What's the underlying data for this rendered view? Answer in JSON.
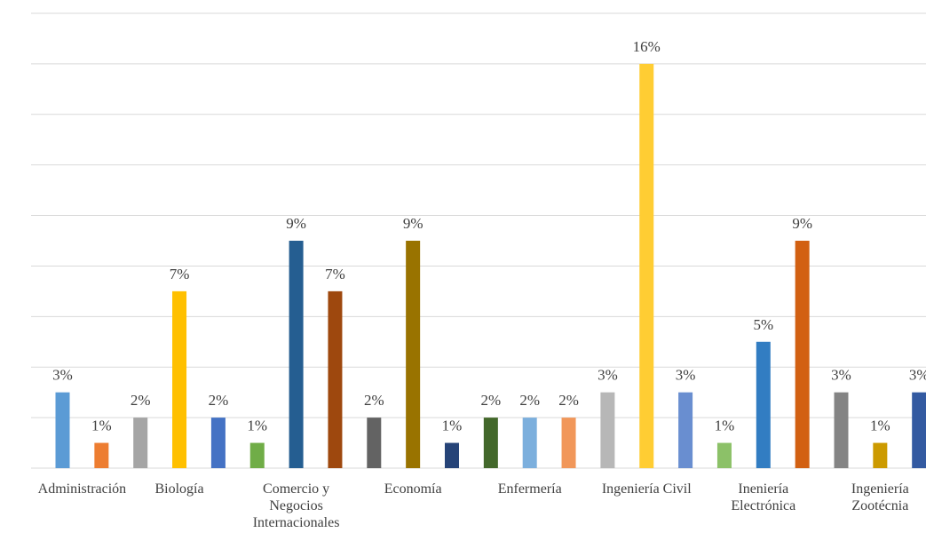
{
  "chart_data": {
    "type": "bar",
    "title": "",
    "xlabel": "",
    "ylabel": "",
    "ylim": [
      0,
      18
    ],
    "grid": true,
    "legend": "none",
    "groups": [
      {
        "label": "Administración",
        "lines": [
          "Administración"
        ],
        "bars": [
          {
            "value": 3,
            "label": "3%",
            "color": "#5B9BD5"
          },
          {
            "value": 1,
            "label": "1%",
            "color": "#ED7D31"
          }
        ]
      },
      {
        "label": "Biología",
        "lines": [
          "Biología"
        ],
        "bars": [
          {
            "value": 2,
            "label": "2%",
            "color": "#A5A5A5"
          },
          {
            "value": 7,
            "label": "7%",
            "color": "#FFC000"
          },
          {
            "value": 2,
            "label": "2%",
            "color": "#4472C4"
          }
        ]
      },
      {
        "label": "Comercio y Negocios Internacionales",
        "lines": [
          "Comercio y",
          "Negocios",
          "Internacionales"
        ],
        "bars": [
          {
            "value": 1,
            "label": "1%",
            "color": "#70AD47"
          },
          {
            "value": 9,
            "label": "9%",
            "color": "#255E91"
          },
          {
            "value": 7,
            "label": "7%",
            "color": "#9E480E"
          }
        ]
      },
      {
        "label": "Economía",
        "lines": [
          "Economía"
        ],
        "bars": [
          {
            "value": 2,
            "label": "2%",
            "color": "#636363"
          },
          {
            "value": 9,
            "label": "9%",
            "color": "#997300"
          },
          {
            "value": 1,
            "label": "1%",
            "color": "#264478"
          }
        ]
      },
      {
        "label": "Enfermería",
        "lines": [
          "Enfermería"
        ],
        "bars": [
          {
            "value": 2,
            "label": "2%",
            "color": "#43682B"
          },
          {
            "value": 2,
            "label": "2%",
            "color": "#7CAFDD"
          },
          {
            "value": 2,
            "label": "2%",
            "color": "#F1975A"
          }
        ]
      },
      {
        "label": "Ingeniería Civil",
        "lines": [
          "Ingeniería Civil"
        ],
        "bars": [
          {
            "value": 3,
            "label": "3%",
            "color": "#B7B7B7"
          },
          {
            "value": 16,
            "label": "16%",
            "color": "#FFCD33"
          },
          {
            "value": 3,
            "label": "3%",
            "color": "#698ED0"
          }
        ]
      },
      {
        "label": "Ineniería Electrónica",
        "lines": [
          "Ineniería",
          "Electrónica"
        ],
        "bars": [
          {
            "value": 1,
            "label": "1%",
            "color": "#8CC168"
          },
          {
            "value": 5,
            "label": "5%",
            "color": "#327DC2"
          },
          {
            "value": 9,
            "label": "9%",
            "color": "#D26012"
          }
        ]
      },
      {
        "label": "Ingeniería Zootécnia",
        "lines": [
          "Ingeniería",
          "Zootécnia"
        ],
        "bars": [
          {
            "value": 3,
            "label": "3%",
            "color": "#848484"
          },
          {
            "value": 1,
            "label": "1%",
            "color": "#CC9A00"
          },
          {
            "value": 3,
            "label": "3%",
            "color": "#335AA1"
          }
        ]
      }
    ]
  }
}
